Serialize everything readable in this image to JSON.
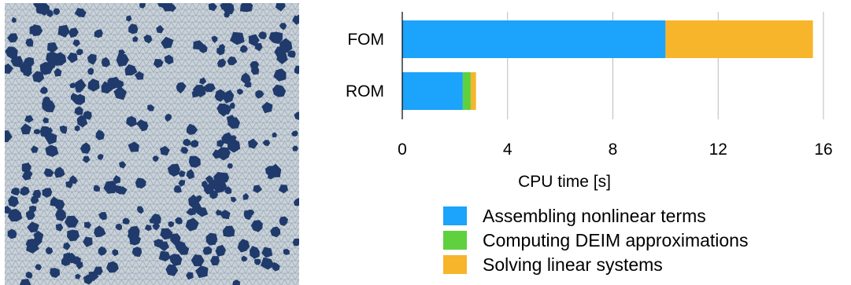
{
  "chart_data": {
    "type": "bar",
    "orientation": "horizontal",
    "stacked": true,
    "categories": [
      "FOM",
      "ROM"
    ],
    "series": [
      {
        "name": "Assembling nonlinear terms",
        "values": [
          10.0,
          2.3
        ],
        "color": "#1CA3FB"
      },
      {
        "name": "Computing DEIM approximations",
        "values": [
          0.0,
          0.3
        ],
        "color": "#5FD13E"
      },
      {
        "name": "Solving linear systems",
        "values": [
          5.6,
          0.2
        ],
        "color": "#F7B52B"
      }
    ],
    "xlabel": "CPU time [s]",
    "ylabel": "",
    "title": "",
    "xlim": [
      0,
      16
    ],
    "xticks": [
      "0",
      "4",
      "8",
      "12",
      "16"
    ],
    "grid": "vertical",
    "legend": "below"
  },
  "mesh_image": {
    "background_color": "#C8D0D6",
    "inclusion_color": "#1F3A6B"
  }
}
